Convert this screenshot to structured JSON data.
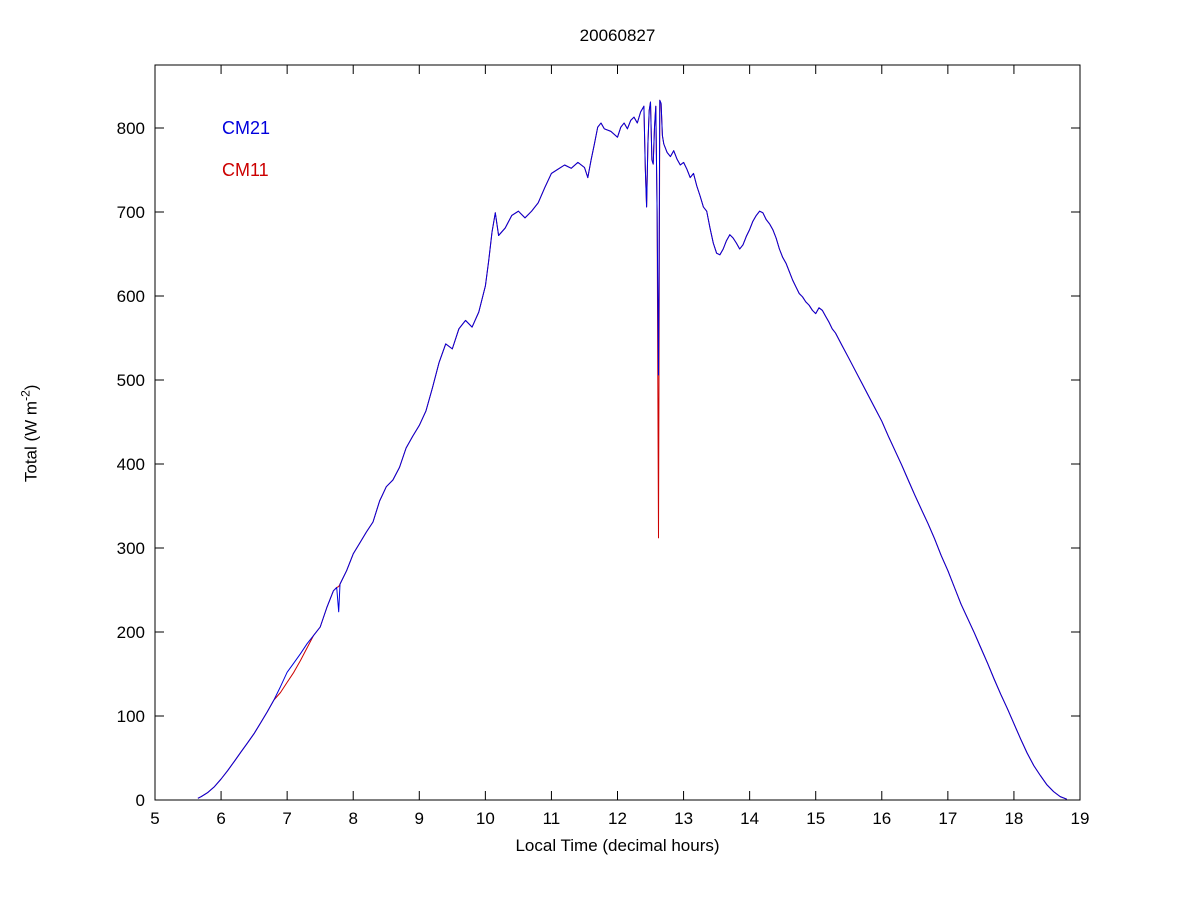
{
  "chart_data": {
    "type": "line",
    "title": "20060827",
    "xlabel": "Local Time (decimal hours)",
    "ylabel": "Total (W m-2)",
    "ylabel_parts": {
      "prefix": "Total (W m",
      "sup": "-2",
      "suffix": ")"
    },
    "xlim": [
      5,
      19
    ],
    "ylim": [
      0,
      875
    ],
    "xticks": [
      5,
      6,
      7,
      8,
      9,
      10,
      11,
      12,
      13,
      14,
      15,
      16,
      17,
      18,
      19
    ],
    "yticks": [
      0,
      100,
      200,
      300,
      400,
      500,
      600,
      700,
      800
    ],
    "grid": false,
    "legend_position": "upper-left-inside",
    "x": [
      5.65,
      5.7,
      5.8,
      5.9,
      6.0,
      6.1,
      6.2,
      6.3,
      6.4,
      6.5,
      6.6,
      6.7,
      6.8,
      6.9,
      7.0,
      7.1,
      7.2,
      7.3,
      7.4,
      7.5,
      7.6,
      7.7,
      7.75,
      7.78,
      7.8,
      7.9,
      8.0,
      8.1,
      8.2,
      8.3,
      8.4,
      8.5,
      8.6,
      8.7,
      8.8,
      8.9,
      9.0,
      9.1,
      9.2,
      9.3,
      9.4,
      9.5,
      9.6,
      9.7,
      9.8,
      9.9,
      10.0,
      10.05,
      10.1,
      10.15,
      10.2,
      10.3,
      10.4,
      10.5,
      10.6,
      10.7,
      10.8,
      10.9,
      11.0,
      11.1,
      11.2,
      11.3,
      11.4,
      11.5,
      11.55,
      11.6,
      11.65,
      11.7,
      11.75,
      11.8,
      11.9,
      12.0,
      12.05,
      12.1,
      12.15,
      12.2,
      12.25,
      12.3,
      12.35,
      12.4,
      12.42,
      12.44,
      12.46,
      12.48,
      12.5,
      12.52,
      12.54,
      12.56,
      12.58,
      12.6,
      12.62,
      12.64,
      12.66,
      12.68,
      12.7,
      12.75,
      12.8,
      12.85,
      12.9,
      12.95,
      13.0,
      13.05,
      13.1,
      13.15,
      13.2,
      13.25,
      13.3,
      13.35,
      13.4,
      13.45,
      13.5,
      13.55,
      13.6,
      13.65,
      13.7,
      13.75,
      13.8,
      13.85,
      13.9,
      13.95,
      14.0,
      14.05,
      14.1,
      14.15,
      14.2,
      14.25,
      14.3,
      14.35,
      14.4,
      14.45,
      14.5,
      14.55,
      14.6,
      14.65,
      14.7,
      14.75,
      14.8,
      14.85,
      14.9,
      14.95,
      15.0,
      15.05,
      15.1,
      15.15,
      15.2,
      15.25,
      15.3,
      15.4,
      15.5,
      15.6,
      15.7,
      15.8,
      15.9,
      16.0,
      16.1,
      16.2,
      16.3,
      16.4,
      16.5,
      16.6,
      16.7,
      16.8,
      16.9,
      17.0,
      17.1,
      17.2,
      17.3,
      17.4,
      17.5,
      17.6,
      17.7,
      17.8,
      17.9,
      18.0,
      18.1,
      18.2,
      18.3,
      18.4,
      18.5,
      18.6,
      18.7,
      18.8
    ],
    "series": [
      {
        "name": "CM21",
        "color": "#0000dd",
        "values": [
          2,
          4,
          9,
          16,
          25,
          35,
          46,
          57,
          68,
          79,
          92,
          105,
          119,
          135,
          152,
          163,
          174,
          186,
          196,
          206,
          229,
          249,
          253,
          224,
          257,
          273,
          293,
          306,
          319,
          331,
          356,
          373,
          381,
          396,
          419,
          433,
          446,
          463,
          491,
          521,
          543,
          537,
          561,
          571,
          563,
          581,
          612,
          642,
          676,
          699,
          672,
          681,
          696,
          701,
          693,
          701,
          711,
          729,
          746,
          751,
          756,
          752,
          759,
          753,
          741,
          762,
          781,
          801,
          806,
          799,
          796,
          789,
          801,
          806,
          799,
          809,
          813,
          806,
          819,
          826,
          752,
          706,
          781,
          821,
          831,
          762,
          757,
          801,
          826,
          701,
          506,
          833,
          829,
          791,
          781,
          771,
          766,
          773,
          763,
          756,
          759,
          751,
          741,
          746,
          731,
          719,
          706,
          701,
          681,
          663,
          651,
          649,
          656,
          666,
          673,
          669,
          663,
          656,
          661,
          671,
          679,
          689,
          696,
          701,
          699,
          691,
          686,
          679,
          669,
          656,
          646,
          639,
          629,
          619,
          611,
          603,
          599,
          593,
          589,
          583,
          579,
          586,
          583,
          576,
          569,
          561,
          556,
          541,
          526,
          511,
          496,
          481,
          466,
          451,
          433,
          416,
          399,
          381,
          363,
          346,
          329,
          311,
          291,
          273,
          253,
          233,
          216,
          199,
          181,
          163,
          144,
          126,
          109,
          91,
          73,
          56,
          41,
          29,
          18,
          10,
          4,
          1
        ]
      },
      {
        "name": "CM11",
        "color": "#cc0000",
        "values": [
          2,
          4,
          9,
          16,
          25,
          35,
          46,
          57,
          68,
          79,
          92,
          105,
          119,
          128,
          140,
          152,
          166,
          181,
          196,
          206,
          229,
          249,
          253,
          254,
          257,
          273,
          293,
          306,
          319,
          331,
          356,
          373,
          381,
          396,
          419,
          433,
          446,
          463,
          491,
          521,
          543,
          537,
          561,
          571,
          563,
          581,
          612,
          642,
          676,
          699,
          672,
          681,
          696,
          701,
          693,
          701,
          711,
          729,
          746,
          751,
          756,
          752,
          759,
          753,
          741,
          762,
          781,
          801,
          806,
          799,
          796,
          789,
          801,
          806,
          799,
          809,
          813,
          806,
          819,
          826,
          752,
          706,
          781,
          821,
          831,
          762,
          757,
          801,
          826,
          701,
          312,
          833,
          829,
          791,
          781,
          771,
          766,
          773,
          763,
          756,
          759,
          751,
          741,
          746,
          731,
          719,
          706,
          701,
          681,
          663,
          651,
          649,
          656,
          666,
          673,
          669,
          663,
          656,
          661,
          671,
          679,
          689,
          696,
          701,
          699,
          691,
          686,
          679,
          669,
          656,
          646,
          639,
          629,
          619,
          611,
          603,
          599,
          593,
          589,
          583,
          579,
          586,
          583,
          576,
          569,
          561,
          556,
          541,
          526,
          511,
          496,
          481,
          466,
          451,
          433,
          416,
          399,
          381,
          363,
          346,
          329,
          311,
          291,
          273,
          253,
          233,
          216,
          199,
          181,
          163,
          144,
          126,
          109,
          91,
          73,
          56,
          41,
          29,
          18,
          10,
          4,
          1
        ]
      }
    ]
  },
  "legend": {
    "cm21_label": "CM21",
    "cm11_label": "CM11"
  }
}
